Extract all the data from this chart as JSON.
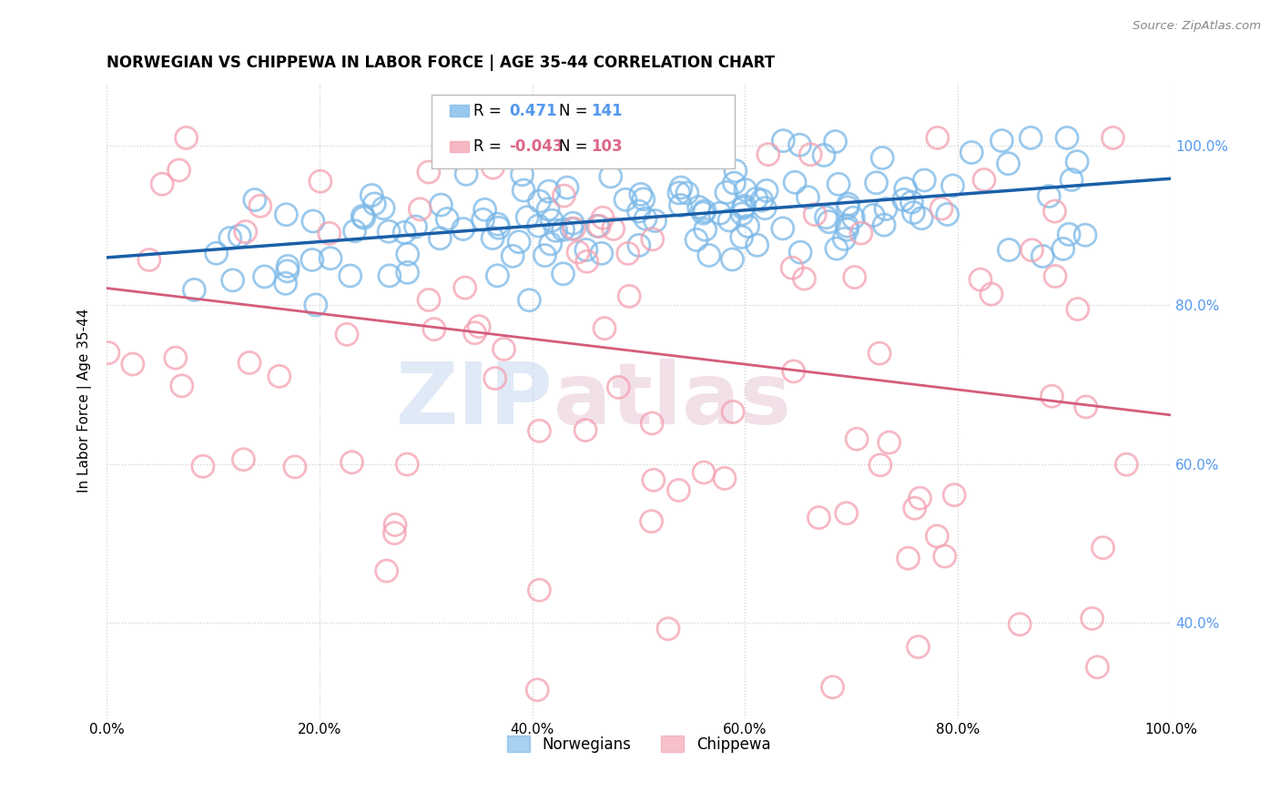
{
  "title": "NORWEGIAN VS CHIPPEWA IN LABOR FORCE | AGE 35-44 CORRELATION CHART",
  "source": "Source: ZipAtlas.com",
  "ylabel": "In Labor Force | Age 35-44",
  "xlim": [
    0.0,
    1.0
  ],
  "ylim": [
    0.28,
    1.08
  ],
  "norwegian_R": 0.471,
  "norwegian_N": 141,
  "chippewa_R": -0.043,
  "chippewa_N": 103,
  "norwegian_color": "#7ab8e8",
  "chippewa_color": "#f4a0b0",
  "norwegian_line_color": "#1a5fa8",
  "chippewa_line_color": "#d45c7a",
  "background_color": "#ffffff",
  "grid_color": "#d0d0d0",
  "title_fontsize": 12,
  "right_tick_color_blue": "#5599ee",
  "right_tick_color_pink": "#dd6688",
  "watermark_color": "#c8d8f0",
  "watermark_color2": "#e8c8d8"
}
